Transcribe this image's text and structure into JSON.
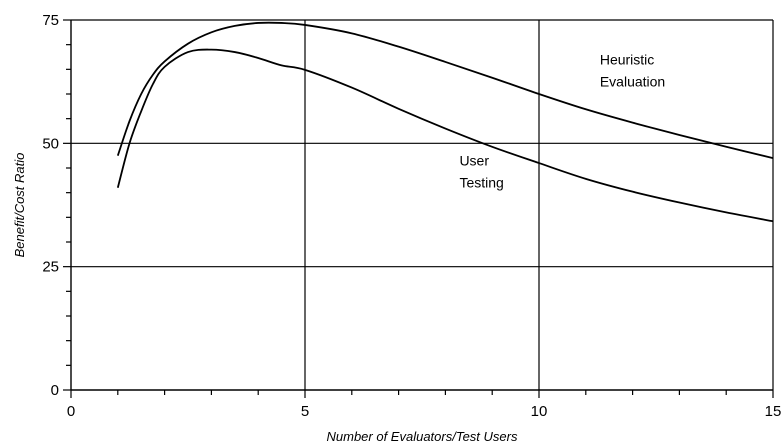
{
  "chart_data": {
    "type": "line",
    "title": "",
    "xlabel": "Number of Evaluators/Test Users",
    "ylabel": "Benefit/Cost Ratio",
    "xlim": [
      0,
      15
    ],
    "ylim": [
      0,
      75
    ],
    "xticks": [
      0,
      5,
      10,
      15
    ],
    "yticks": [
      0,
      25,
      50,
      75
    ],
    "grid": true,
    "series": [
      {
        "name": "Heuristic Evaluation",
        "x": [
          1,
          1.25,
          1.5,
          1.75,
          2,
          2.5,
          3,
          3.5,
          4,
          4.5,
          5,
          6,
          7,
          8,
          9,
          10,
          11,
          12,
          13,
          14,
          15
        ],
        "y": [
          47.5,
          54.5,
          60,
          63.9,
          66.6,
          70.2,
          72.5,
          73.8,
          74.4,
          74.4,
          74,
          72.3,
          69.6,
          66.5,
          63.3,
          60,
          56.9,
          54.2,
          51.7,
          49.3,
          47
        ]
      },
      {
        "name": "User Testing",
        "x": [
          1,
          1.25,
          1.5,
          1.75,
          2,
          2.5,
          3,
          3.5,
          4,
          4.5,
          5,
          6,
          7,
          8,
          9,
          10,
          11,
          12,
          13,
          14,
          15
        ],
        "y": [
          41,
          50,
          56.5,
          62,
          65.5,
          68.5,
          69,
          68.5,
          67.3,
          65.8,
          64.9,
          61.3,
          57,
          53,
          49.3,
          46,
          42.8,
          40.2,
          38,
          36,
          34.2
        ]
      }
    ],
    "annotations": [
      {
        "label": "Heuristic",
        "x": 11.3,
        "y": 66
      },
      {
        "label": "Evaluation",
        "x": 11.3,
        "y": 61.5
      },
      {
        "label": "User",
        "x": 8.3,
        "y": 45.5
      },
      {
        "label": "Testing",
        "x": 8.3,
        "y": 41
      }
    ]
  }
}
